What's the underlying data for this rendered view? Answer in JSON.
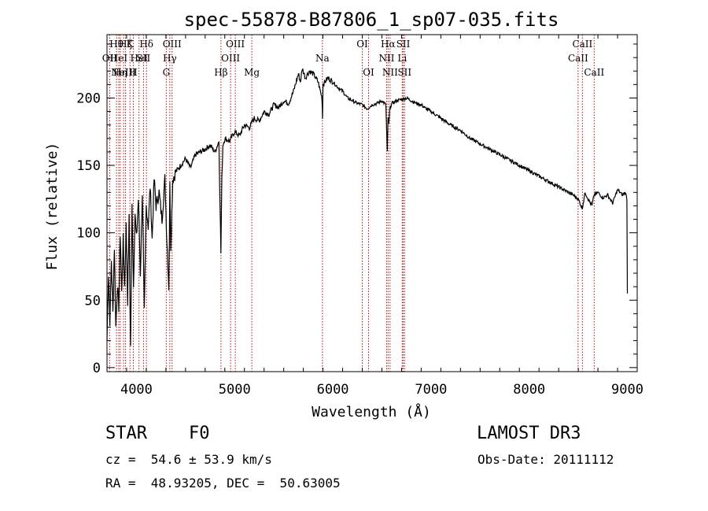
{
  "chart_data": {
    "type": "line",
    "title": "spec-55878-B87806_1_sp07-035.fits",
    "xlabel": "Wavelength (Å)",
    "ylabel": "Flux (relative)",
    "xlim": [
      3700,
      9100
    ],
    "ylim": [
      -3,
      247
    ],
    "xticks": [
      4000,
      5000,
      6000,
      7000,
      8000,
      9000
    ],
    "yticks": [
      0,
      50,
      100,
      150,
      200
    ],
    "series": [
      {
        "name": "spectrum",
        "x": [
          3700,
          3715,
          3730,
          3745,
          3760,
          3775,
          3790,
          3805,
          3820,
          3835,
          3850,
          3865,
          3880,
          3895,
          3910,
          3925,
          3940,
          3955,
          3970,
          3985,
          4000,
          4020,
          4040,
          4060,
          4080,
          4100,
          4120,
          4140,
          4160,
          4180,
          4200,
          4230,
          4260,
          4290,
          4310,
          4330,
          4340,
          4350,
          4370,
          4400,
          4450,
          4500,
          4550,
          4600,
          4650,
          4700,
          4750,
          4800,
          4840,
          4860,
          4870,
          4880,
          4900,
          4950,
          5000,
          5050,
          5100,
          5150,
          5200,
          5250,
          5300,
          5350,
          5400,
          5450,
          5500,
          5550,
          5600,
          5650,
          5670,
          5690,
          5720,
          5760,
          5800,
          5850,
          5890,
          5895,
          5900,
          5950,
          6000,
          6050,
          6100,
          6150,
          6200,
          6250,
          6300,
          6350,
          6400,
          6450,
          6500,
          6540,
          6555,
          6563,
          6570,
          6580,
          6600,
          6650,
          6700,
          6750,
          6800,
          6850,
          6900,
          6950,
          7000,
          7100,
          7200,
          7300,
          7400,
          7500,
          7600,
          7700,
          7800,
          7900,
          8000,
          8100,
          8200,
          8300,
          8400,
          8450,
          8500,
          8540,
          8570,
          8600,
          8640,
          8660,
          8700,
          8750,
          8800,
          8850,
          8900,
          8950,
          8980,
          8995,
          9000
        ],
        "y": [
          20,
          70,
          35,
          80,
          40,
          90,
          30,
          60,
          45,
          100,
          55,
          95,
          60,
          105,
          50,
          110,
          15,
          120,
          60,
          115,
          95,
          125,
          70,
          130,
          40,
          120,
          105,
          135,
          95,
          140,
          120,
          130,
          110,
          140,
          95,
          60,
          135,
          90,
          140,
          145,
          150,
          155,
          148,
          158,
          160,
          162,
          165,
          160,
          168,
          85,
          140,
          165,
          170,
          168,
          175,
          172,
          180,
          178,
          185,
          183,
          190,
          188,
          195,
          193,
          198,
          196,
          205,
          218,
          212,
          222,
          215,
          220,
          218,
          212,
          200,
          185,
          210,
          215,
          212,
          208,
          205,
          200,
          198,
          196,
          195,
          192,
          195,
          196,
          198,
          195,
          160,
          185,
          180,
          192,
          196,
          198,
          199,
          200,
          198,
          196,
          195,
          192,
          190,
          185,
          180,
          176,
          170,
          166,
          162,
          158,
          154,
          150,
          146,
          142,
          138,
          134,
          130,
          128,
          125,
          118,
          130,
          125,
          120,
          128,
          130,
          126,
          128,
          122,
          132,
          128,
          130,
          125,
          55
        ],
        "color": "#000000"
      }
    ],
    "reference_lines": [
      {
        "w": 3727,
        "label": "OII",
        "row": 1
      },
      {
        "w": 3797,
        "label": "Hθ",
        "row": 0
      },
      {
        "w": 3820,
        "label": "HeI",
        "row": 1
      },
      {
        "w": 3835,
        "label": "Hη",
        "row": 2
      },
      {
        "w": 3869,
        "label": "NeIII",
        "row": 2
      },
      {
        "w": 3889,
        "label": "Hζ",
        "row": 0
      },
      {
        "w": 3934,
        "label": "K",
        "row": 0
      },
      {
        "w": 3968,
        "label": "H",
        "row": 2
      },
      {
        "w": 4026,
        "label": "HeI",
        "row": 1
      },
      {
        "w": 4072,
        "label": "SII",
        "row": 1
      },
      {
        "w": 4102,
        "label": "Hδ",
        "row": 0
      },
      {
        "w": 4304,
        "label": "G",
        "row": 2
      },
      {
        "w": 4340,
        "label": "Hγ",
        "row": 1
      },
      {
        "w": 4363,
        "label": "OIII",
        "row": 0
      },
      {
        "w": 4861,
        "label": "Hβ",
        "row": 2
      },
      {
        "w": 4959,
        "label": "OIII",
        "row": 1
      },
      {
        "w": 5007,
        "label": "OIII",
        "row": 0
      },
      {
        "w": 5175,
        "label": "Mg",
        "row": 2
      },
      {
        "w": 5894,
        "label": "Na",
        "row": 1
      },
      {
        "w": 6300,
        "label": "OI",
        "row": 0
      },
      {
        "w": 6364,
        "label": "OI",
        "row": 2
      },
      {
        "w": 6548,
        "label": "NII",
        "row": 1
      },
      {
        "w": 6563,
        "label": "Hα",
        "row": 0
      },
      {
        "w": 6583,
        "label": "NII",
        "row": 2
      },
      {
        "w": 6707,
        "label": "Li",
        "row": 1
      },
      {
        "w": 6717,
        "label": "SII",
        "row": 0
      },
      {
        "w": 6731,
        "label": "SII",
        "row": 2
      },
      {
        "w": 8498,
        "label": "CaII",
        "row": 1
      },
      {
        "w": 8542,
        "label": "CaII",
        "row": 0
      },
      {
        "w": 8662,
        "label": "CaII",
        "row": 2
      }
    ]
  },
  "info": {
    "object_class": "STAR",
    "subclass": "F0",
    "survey": "LAMOST DR3",
    "redshift": "cz =  54.6 ± 53.9 km/s",
    "obs_date": "Obs-Date: 20111112",
    "coords": "RA =  48.93205, DEC =  50.63005"
  }
}
